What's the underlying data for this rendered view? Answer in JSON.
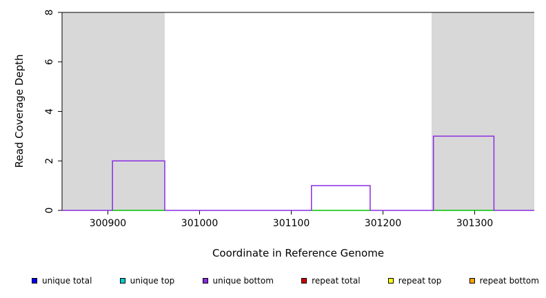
{
  "figure": {
    "background": "#ffffff",
    "axis_color": "#000000"
  },
  "chart_data": {
    "type": "line",
    "title": "",
    "xlabel": "Coordinate in Reference Genome",
    "ylabel": "Read Coverage Depth",
    "xlim": [
      300850,
      301365
    ],
    "ylim": [
      0,
      8
    ],
    "xticks": [
      300900,
      301000,
      301100,
      301200,
      301300
    ],
    "yticks": [
      0,
      2,
      4,
      6,
      8
    ],
    "grid": false,
    "top_border": true,
    "shaded_regions": [
      {
        "x0": 300850,
        "x1": 300962,
        "color": "#d8d8d8"
      },
      {
        "x0": 301253,
        "x1": 301365,
        "color": "#d8d8d8"
      }
    ],
    "series": [
      {
        "name": "unique bottom",
        "color": "#8A2BE2",
        "type": "step",
        "points": [
          [
            300850,
            0
          ],
          [
            300905,
            0
          ],
          [
            300905,
            2
          ],
          [
            300962,
            2
          ],
          [
            300962,
            0
          ],
          [
            301122,
            0
          ],
          [
            301122,
            1
          ],
          [
            301186,
            1
          ],
          [
            301186,
            0
          ],
          [
            301255,
            0
          ],
          [
            301255,
            3
          ],
          [
            301321,
            3
          ],
          [
            301321,
            0
          ],
          [
            301365,
            0
          ]
        ]
      },
      {
        "name": "zero baseline",
        "color": "#00C000",
        "type": "segments",
        "y": 0,
        "segments": [
          [
            300905,
            300962
          ],
          [
            301122,
            301186
          ],
          [
            301255,
            301321
          ]
        ]
      }
    ],
    "legend_position": "bottom",
    "legend": [
      {
        "label": "unique total",
        "color": "#0000EE"
      },
      {
        "label": "unique top",
        "color": "#00CDCD"
      },
      {
        "label": "unique bottom",
        "color": "#8A2BE2"
      },
      {
        "label": "repeat total",
        "color": "#CD0000"
      },
      {
        "label": "repeat top",
        "color": "#FFFF00"
      },
      {
        "label": "repeat bottom",
        "color": "#FFA500"
      }
    ]
  }
}
